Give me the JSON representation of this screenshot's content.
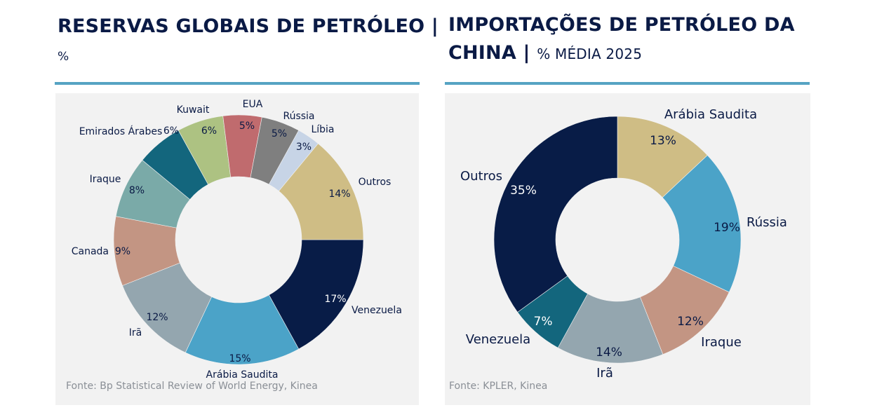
{
  "chart_data": [
    {
      "type": "pie",
      "variant": "donut",
      "title": "RESERVAS GLOBAIS DE PETRÓLEO |",
      "subtitle": "%",
      "source": "Fonte: Bp Statistical Review of World Energy, Kinea",
      "start_angle_deg": 90,
      "slices": [
        {
          "label": "Venezuela",
          "value": 17,
          "display": "17%",
          "color": "#081c47",
          "text_color": "#ffffff"
        },
        {
          "label": "Arábia Saudita",
          "value": 15,
          "display": "15%",
          "color": "#4ba3c8",
          "text_color": "#0a1a45"
        },
        {
          "label": "Irã",
          "value": 12,
          "display": "12%",
          "color": "#94a6af",
          "text_color": "#0a1a45"
        },
        {
          "label": "Canada",
          "value": 9,
          "display": "9%",
          "color": "#c39583",
          "text_color": "#0a1a45"
        },
        {
          "label": "Iraque",
          "value": 8,
          "display": "8%",
          "color": "#7aaaa8",
          "text_color": "#0a1a45"
        },
        {
          "label": "Emirados Árabes",
          "value": 6,
          "display": "6%",
          "color": "#13667d",
          "text_color": "#0a1a45"
        },
        {
          "label": "Kuwait",
          "value": 6,
          "display": "6%",
          "color": "#adc282",
          "text_color": "#0a1a45"
        },
        {
          "label": "EUA",
          "value": 5,
          "display": "5%",
          "color": "#c06b6e",
          "text_color": "#0a1a45"
        },
        {
          "label": "Rússia",
          "value": 5,
          "display": "5%",
          "color": "#7f7f7f",
          "text_color": "#0a1a45"
        },
        {
          "label": "Líbia",
          "value": 3,
          "display": "3%",
          "color": "#c7d4e6",
          "text_color": "#0a1a45"
        },
        {
          "label": "Outros",
          "value": 14,
          "display": "14%",
          "color": "#cfbd85",
          "text_color": "#0a1a45"
        }
      ]
    },
    {
      "type": "pie",
      "variant": "donut",
      "title": "IMPORTAÇÕES DE PETRÓLEO DA CHINA |",
      "title_line1": "IMPORTAÇÕES DE PETRÓLEO DA",
      "title_line2": "CHINA |",
      "subtitle": "% MÉDIA 2025",
      "source": "Fonte: KPLER, Kinea",
      "start_angle_deg": 0,
      "slices": [
        {
          "label": "Arábia Saudita",
          "value": 13,
          "display": "13%",
          "color": "#cfbd85",
          "text_color": "#0a1a45"
        },
        {
          "label": "Rússia",
          "value": 19,
          "display": "19%",
          "color": "#4ba3c8",
          "text_color": "#0a1a45"
        },
        {
          "label": "Iraque",
          "value": 12,
          "display": "12%",
          "color": "#c39583",
          "text_color": "#0a1a45"
        },
        {
          "label": "Irã",
          "value": 14,
          "display": "14%",
          "color": "#94a6af",
          "text_color": "#0a1a45"
        },
        {
          "label": "Venezuela",
          "value": 7,
          "display": "7%",
          "color": "#13667d",
          "text_color": "#ffffff"
        },
        {
          "label": "Outros",
          "value": 35,
          "display": "35%",
          "color": "#081c47",
          "text_color": "#ffffff"
        }
      ]
    }
  ]
}
